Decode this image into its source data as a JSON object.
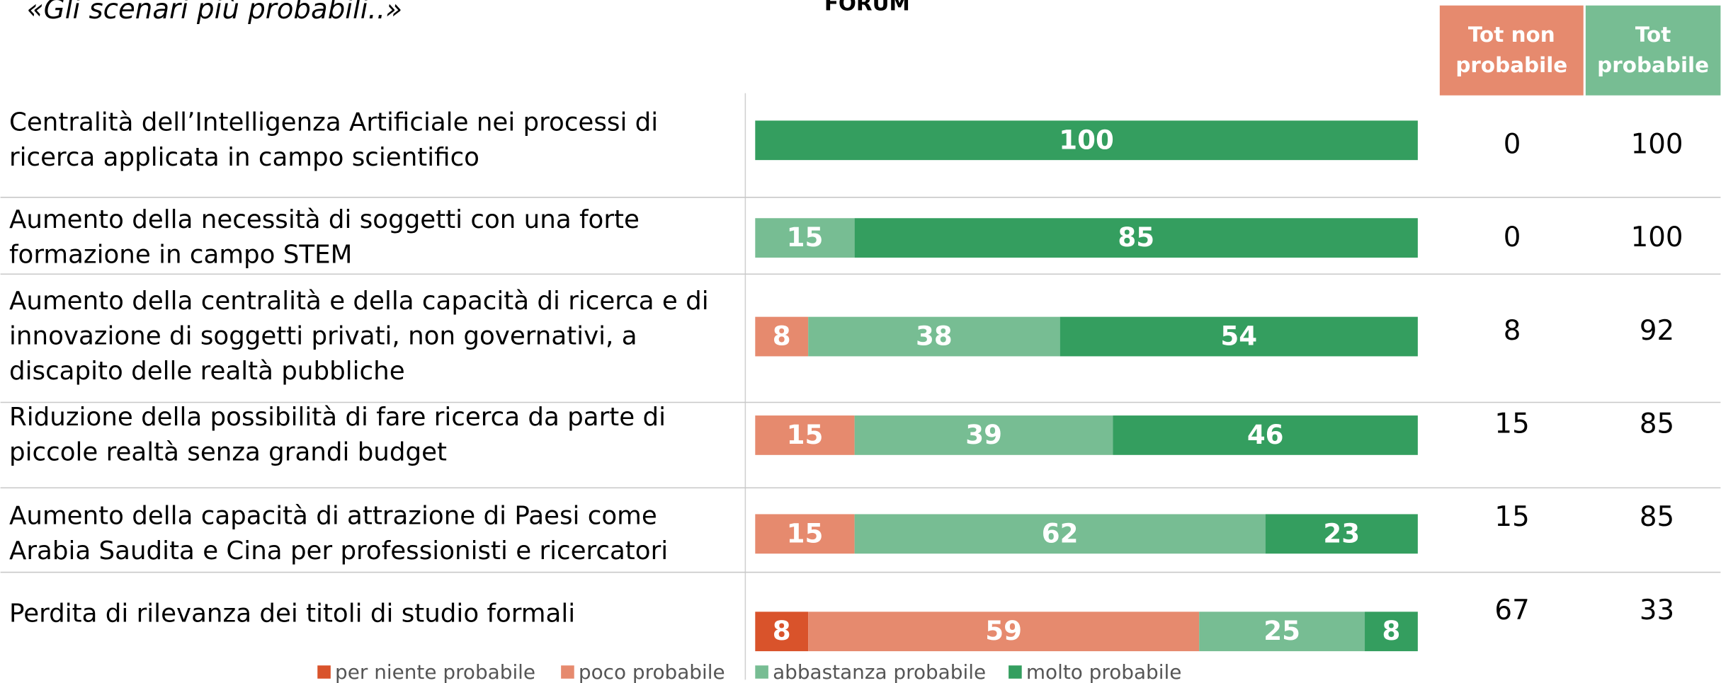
{
  "chart_data": {
    "type": "stacked-bar",
    "title": "«Gli scenari più probabili..»",
    "brand": "FORUM",
    "orientation": "horizontal",
    "xlim": [
      0,
      100
    ],
    "categories": [
      "Centralità dell’Intelligenza Artificiale nei processi di ricerca applicata in campo scientifico",
      "Aumento della necessità di soggetti con una forte formazione in campo STEM",
      "Aumento della centralità e della capacità di ricerca e di innovazione di soggetti privati, non governativi, a discapito delle realtà pubbliche",
      "Riduzione della possibilità di fare ricerca da parte di piccole realtà senza grandi budget",
      "Aumento della capacità di attrazione di Paesi come Arabia Saudita e Cina per professionisti e ricercatori",
      "Perdita di rilevanza dei titoli di studio formali"
    ],
    "series": [
      {
        "name": "per niente probabile",
        "color": "#d9532b",
        "values": [
          0,
          0,
          0,
          0,
          0,
          8
        ]
      },
      {
        "name": "poco probabile",
        "color": "#e68a6e",
        "values": [
          0,
          0,
          8,
          15,
          15,
          59
        ]
      },
      {
        "name": "abbastanza probabile",
        "color": "#77bd93",
        "values": [
          0,
          15,
          38,
          39,
          62,
          25
        ]
      },
      {
        "name": "molto probabile",
        "color": "#349e5f",
        "values": [
          100,
          85,
          54,
          46,
          23,
          8
        ]
      }
    ],
    "columns": [
      {
        "name": "Tot non probabile",
        "color": "#e68a6e",
        "values": [
          0,
          0,
          8,
          15,
          15,
          67
        ]
      },
      {
        "name": "Tot probabile",
        "color": "#77bd93",
        "values": [
          100,
          100,
          92,
          85,
          85,
          33
        ]
      }
    ]
  }
}
